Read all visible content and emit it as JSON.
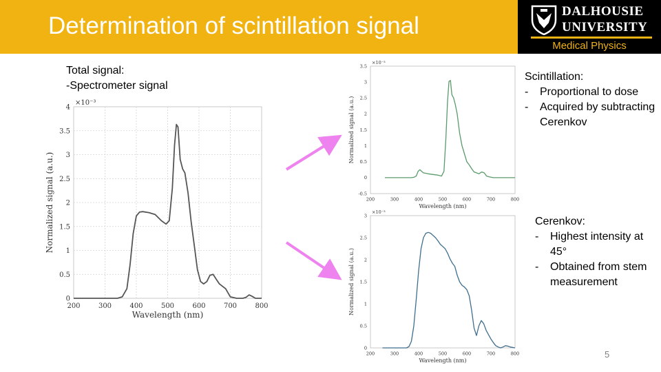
{
  "slide": {
    "title": "Determination of scintillation signal",
    "logo": {
      "line1": "DALHOUSIE",
      "line2": "UNIVERSITY",
      "unit": "Medical Physics"
    },
    "left_text": {
      "line1": "Total signal:",
      "line2": "-Spectrometer signal"
    },
    "scint_text": {
      "heading": "Scintillation:",
      "bullets": [
        "Proportional to dose",
        "Acquired by subtracting Cerenkov"
      ]
    },
    "cerenkov_text": {
      "heading": "Cerenkov:",
      "bullets": [
        "Highest intensity at 45°",
        "Obtained from stem measurement"
      ]
    },
    "page_number": "5",
    "colors": {
      "header": "#f0b312",
      "arrow": "#ee82ee",
      "total_line": "#555555",
      "scint_line": "#5a9a6a",
      "cerenkov_line": "#3e6e8e"
    }
  },
  "chart_data": [
    {
      "type": "line",
      "xlabel": "Wavelength (nm)",
      "ylabel": "Normalized signal (a.u.)",
      "multiplier": "×10⁻³",
      "xlim": [
        200,
        800
      ],
      "ylim": [
        0,
        4
      ],
      "xticks": [
        "200",
        "300",
        "400",
        "500",
        "600",
        "700",
        "800"
      ],
      "yticks": [
        "0",
        "0.5",
        "1",
        "1.5",
        "2",
        "2.5",
        "3",
        "3.5",
        "4"
      ],
      "grid": true,
      "x": [
        200,
        340,
        355,
        370,
        380,
        390,
        400,
        410,
        420,
        440,
        460,
        480,
        495,
        505,
        515,
        522,
        528,
        533,
        540,
        548,
        555,
        565,
        575,
        585,
        595,
        605,
        615,
        625,
        635,
        645,
        655,
        665,
        675,
        685,
        700,
        720,
        740,
        750,
        760,
        770,
        780,
        800
      ],
      "y": [
        0,
        0,
        0.03,
        0.2,
        0.7,
        1.35,
        1.72,
        1.8,
        1.81,
        1.79,
        1.75,
        1.62,
        1.55,
        1.62,
        2.3,
        3.2,
        3.63,
        3.58,
        2.9,
        2.7,
        2.62,
        2.2,
        1.6,
        1.1,
        0.6,
        0.35,
        0.3,
        0.35,
        0.48,
        0.5,
        0.4,
        0.3,
        0.25,
        0.2,
        0.03,
        0,
        0,
        0.02,
        0.07,
        0.04,
        0,
        0
      ]
    },
    {
      "type": "line",
      "xlabel": "Wavelength (nm)",
      "ylabel": "Normalized signal (a.u.)",
      "multiplier": "×10⁻³",
      "xlim": [
        200,
        800
      ],
      "ylim": [
        -0.5,
        3.5
      ],
      "xticks": [
        "200",
        "300",
        "400",
        "500",
        "600",
        "700",
        "800"
      ],
      "yticks": [
        "-0.5",
        "0",
        "0.5",
        "1",
        "1.5",
        "2",
        "2.5",
        "3",
        "3.5"
      ],
      "grid": false,
      "x": [
        260,
        370,
        380,
        390,
        398,
        405,
        412,
        420,
        440,
        460,
        480,
        495,
        505,
        513,
        520,
        526,
        532,
        538,
        545,
        552,
        560,
        570,
        580,
        592,
        600,
        610,
        620,
        630,
        640,
        650,
        662,
        672,
        682,
        695,
        710,
        720,
        800
      ],
      "y": [
        0,
        0,
        0.01,
        0.05,
        0.2,
        0.25,
        0.2,
        0.15,
        0.12,
        0.1,
        0.08,
        0.05,
        0.2,
        1.2,
        2.4,
        3.02,
        3.05,
        2.6,
        2.5,
        2.3,
        2.0,
        1.4,
        1.0,
        0.7,
        0.5,
        0.4,
        0.28,
        0.18,
        0.15,
        0.12,
        0.18,
        0.15,
        0.05,
        0.02,
        0,
        0,
        0
      ]
    },
    {
      "type": "line",
      "xlabel": "Wavelength (nm)",
      "ylabel": "Normalized signal (a.u.)",
      "multiplier": "×10⁻³",
      "xlim": [
        200,
        800
      ],
      "ylim": [
        0,
        3
      ],
      "xticks": [
        "200",
        "300",
        "400",
        "500",
        "600",
        "700",
        "800"
      ],
      "yticks": [
        "0",
        "0.5",
        "1",
        "1.5",
        "2",
        "2.5",
        "3"
      ],
      "grid": false,
      "x": [
        250,
        350,
        360,
        370,
        380,
        390,
        400,
        410,
        420,
        430,
        440,
        450,
        460,
        470,
        480,
        490,
        500,
        510,
        520,
        530,
        540,
        550,
        560,
        570,
        580,
        590,
        600,
        610,
        620,
        630,
        640,
        650,
        660,
        670,
        680,
        690,
        700,
        710,
        720,
        730,
        740,
        750,
        760,
        770,
        780,
        800
      ],
      "y": [
        0,
        0,
        0.03,
        0.15,
        0.5,
        1.1,
        1.75,
        2.25,
        2.5,
        2.6,
        2.62,
        2.6,
        2.55,
        2.5,
        2.43,
        2.35,
        2.3,
        2.25,
        2.15,
        2.02,
        1.92,
        1.85,
        1.65,
        1.5,
        1.42,
        1.38,
        1.32,
        1.18,
        0.85,
        0.45,
        0.28,
        0.5,
        0.62,
        0.55,
        0.4,
        0.3,
        0.2,
        0.12,
        0.05,
        0.02,
        0,
        0.02,
        0.05,
        0.04,
        0.02,
        0
      ]
    }
  ]
}
